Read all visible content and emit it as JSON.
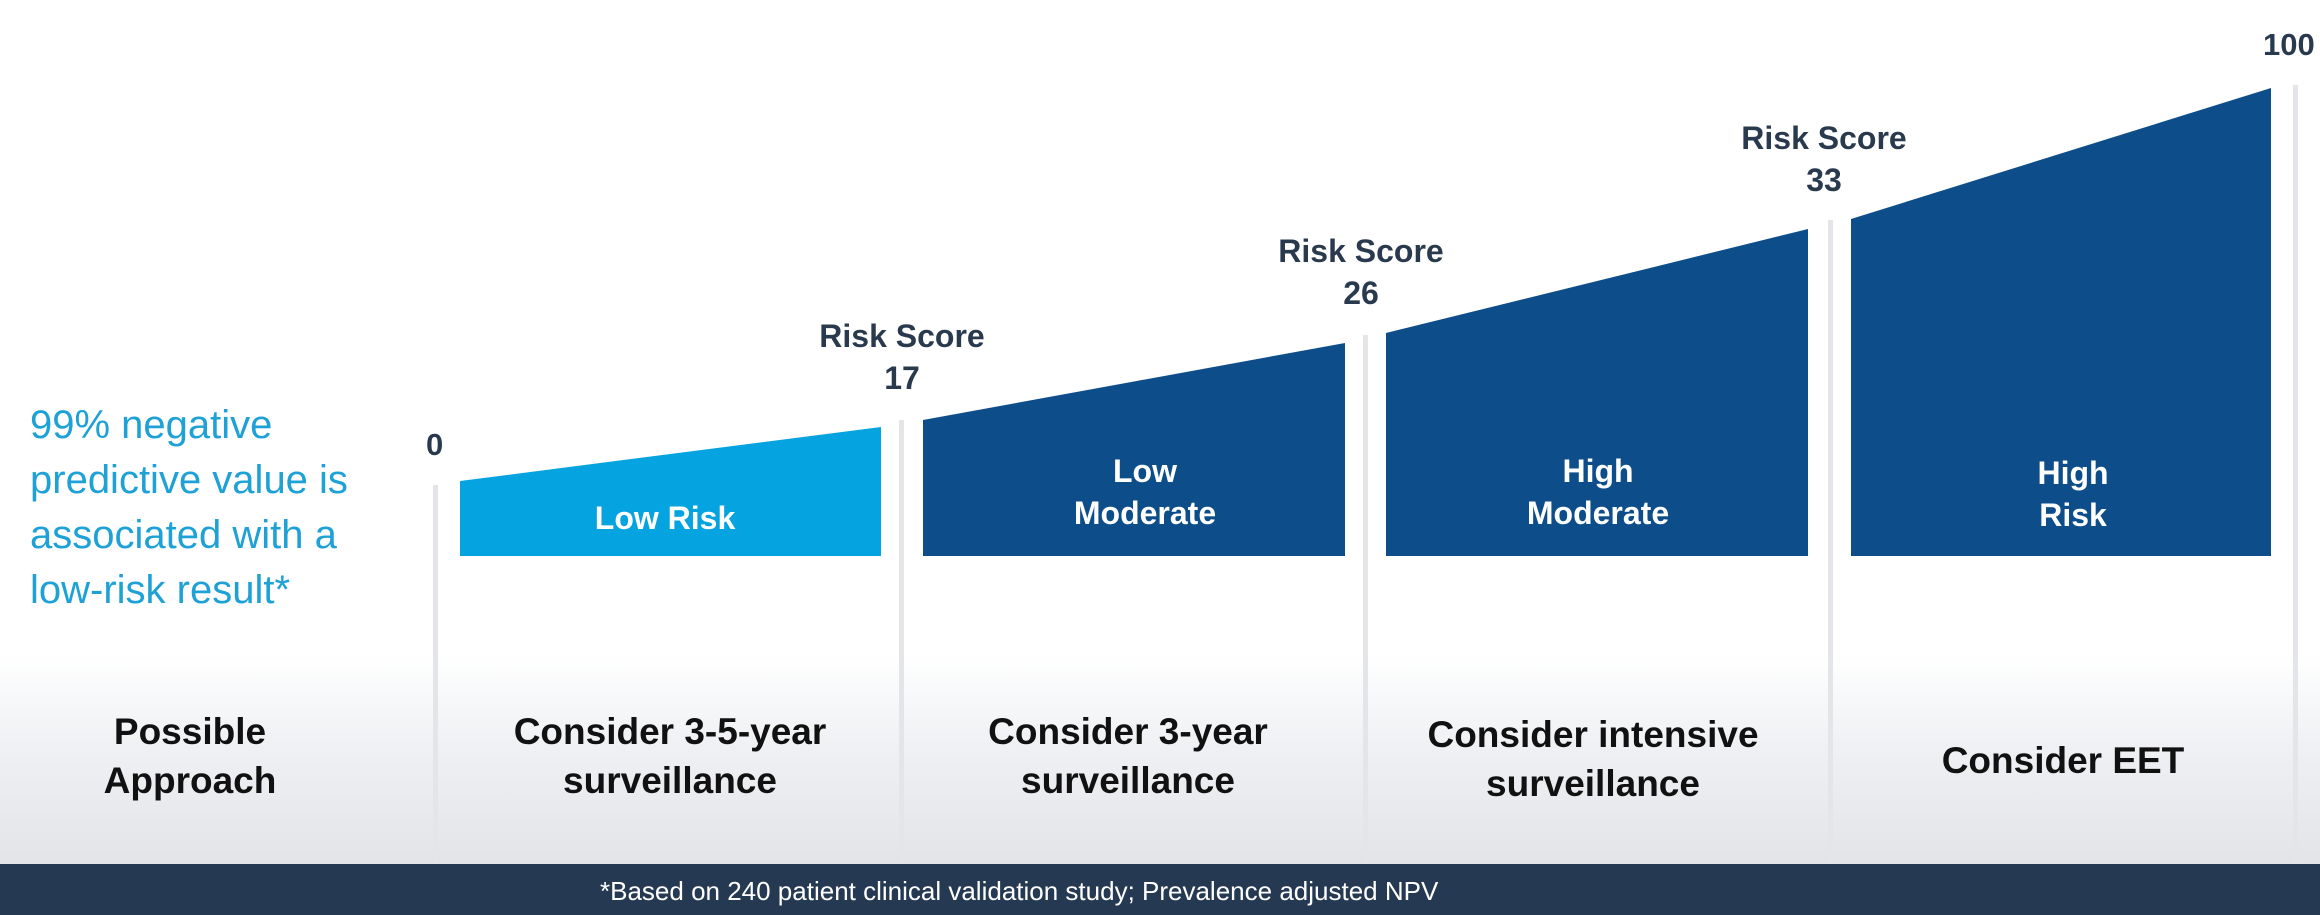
{
  "npv_statement": "99% negative predictive value is associated with a low-risk result*",
  "scale": {
    "start_value": "0",
    "end_value": "100"
  },
  "thresholds": [
    {
      "label": "Risk Score",
      "value": "17"
    },
    {
      "label": "Risk Score",
      "value": "26"
    },
    {
      "label": "Risk Score",
      "value": "33"
    }
  ],
  "bands": [
    {
      "label_line1": "Low Risk",
      "label_line2": "",
      "color": "#05a3e0"
    },
    {
      "label_line1": "Low",
      "label_line2": "Moderate",
      "color": "#0d4e8a"
    },
    {
      "label_line1": "High",
      "label_line2": "Moderate",
      "color": "#0d4e8a"
    },
    {
      "label_line1": "High",
      "label_line2": "Risk",
      "color": "#0d4e8a"
    }
  ],
  "approach_header": {
    "line1": "Possible",
    "line2": "Approach"
  },
  "approaches": [
    {
      "line1": "Consider 3-5-year",
      "line2": "surveillance"
    },
    {
      "line1": "Consider 3-year",
      "line2": "surveillance"
    },
    {
      "line1": "Consider intensive",
      "line2": "surveillance"
    },
    {
      "line1": "Consider EET",
      "line2": ""
    }
  ],
  "footnote": "*Based on 240 patient clinical validation study; Prevalence adjusted NPV"
}
